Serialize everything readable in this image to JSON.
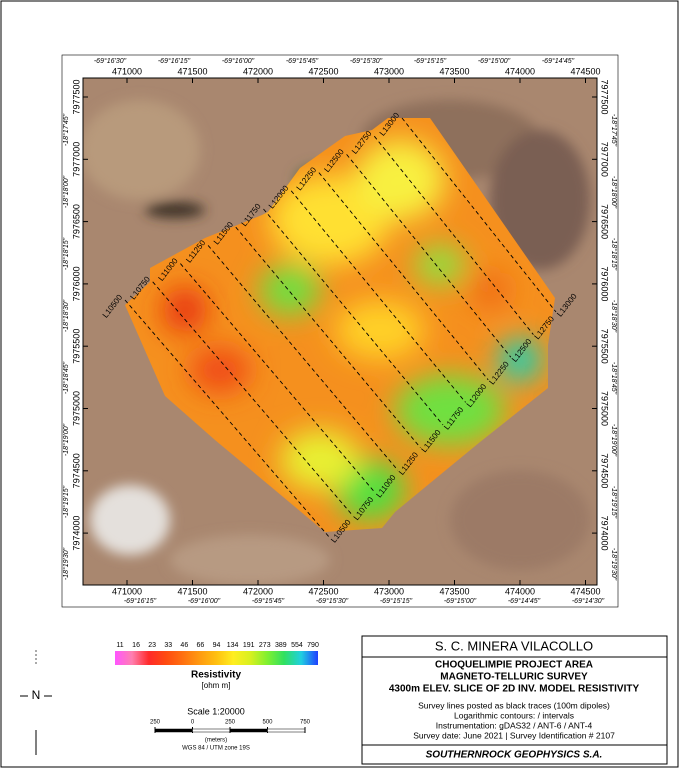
{
  "map": {
    "eastings": [
      471000,
      471500,
      472000,
      472500,
      473000,
      473500,
      474000,
      474500
    ],
    "northings": [
      7977500,
      7977000,
      7976500,
      7976000,
      7975500,
      7975000,
      7974500,
      7974000
    ],
    "lon_labels_top": [
      "-69°16'30\"",
      "-69°16'15\"",
      "-69°16'00\"",
      "-69°15'45\"",
      "-69°15'30\"",
      "-69°15'15\"",
      "-69°15'00\"",
      "-69°14'45\""
    ],
    "lon_labels_bottom": [
      "-69°16'15\"",
      "-69°16'00\"",
      "-69°15'45\"",
      "-69°15'30\"",
      "-69°15'15\"",
      "-69°15'00\"",
      "-69°14'45\"",
      "-69°14'30\""
    ],
    "lat_labels_left": [
      "-18°17'45\"",
      "-18°18'00\"",
      "-18°18'15\"",
      "-18°18'30\"",
      "-18°18'45\"",
      "-18°19'00\"",
      "-18°19'15\"",
      "-18°19'30\""
    ],
    "lat_labels_right": [
      "-18°17'45\"",
      "-18°18'00\"",
      "-18°18'15\"",
      "-18°18'30\"",
      "-18°18'45\"",
      "-18°19'00\"",
      "-18°19'15\"",
      "-18°19'30\""
    ],
    "survey_lines": [
      "L10500",
      "L10750",
      "L11000",
      "L11250",
      "L11500",
      "L11750",
      "L12000",
      "L12250",
      "L12500",
      "L12750",
      "L13000"
    ]
  },
  "legend": {
    "title": "Resistivity",
    "unit": "[ohm m]",
    "ticks": [
      11,
      16,
      23,
      33,
      46,
      66,
      94,
      134,
      191,
      273,
      389,
      554,
      790
    ],
    "colors": [
      "#ff55ff",
      "#ff7fb0",
      "#ff2a2a",
      "#ff4a10",
      "#ff7010",
      "#ff9a10",
      "#ffc010",
      "#ffee20",
      "#d8f020",
      "#80f030",
      "#30e060",
      "#20d0e0",
      "#2040ff"
    ]
  },
  "scale": {
    "title": "Scale 1:20000",
    "ticks": [
      {
        "value": -250,
        "label": "250"
      },
      0,
      250,
      500,
      750
    ],
    "unit": "(meters)",
    "datum": "WGS 84 / UTM zone 19S"
  },
  "north": "N",
  "title_block": {
    "company": "S. C. MINERA VILACOLLO",
    "headings": [
      "CHOQUELIMPIE PROJECT AREA",
      "MAGNETO-TELLURIC SURVEY",
      "4300m ELEV. SLICE OF 2D INV. MODEL RESISTIVITY"
    ],
    "notes": [
      "Survey lines posted as black traces (100m dipoles)",
      "Logarithmic contours: / intervals",
      "Instrumentation: gDAS32 / ANT-6 / ANT-4",
      "Survey date: June 2021 | Survey Identification # 2107"
    ],
    "footer": "SOUTHERNROCK GEOPHYSICS S.A."
  }
}
